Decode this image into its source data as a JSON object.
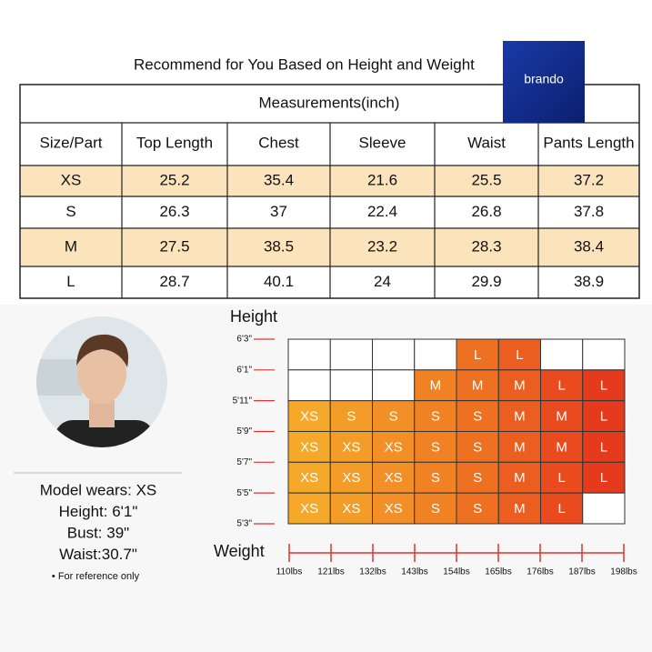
{
  "title": "Recommend for You Based on Height and Weight",
  "logo": "brando",
  "table": {
    "caption": "Measurements(inch)",
    "columns": [
      "Size/Part",
      "Top Length",
      "Chest",
      "Sleeve",
      "Waist",
      "Pants Length"
    ],
    "rows": [
      [
        "XS",
        25.2,
        35.4,
        21.6,
        25.5,
        37.2
      ],
      [
        "S",
        26.3,
        37,
        22.4,
        26.8,
        37.8
      ],
      [
        "M",
        27.5,
        38.5,
        23.2,
        28.3,
        38.4
      ],
      [
        "L",
        28.7,
        40.1,
        24,
        29.9,
        38.9
      ]
    ]
  },
  "height_chart": {
    "y_label": "Height",
    "x_label": "Weight",
    "heights": [
      "6'3\"",
      "6'1\"",
      "5'11\"",
      "5'9\"",
      "5'7\"",
      "5'5\"",
      "5'3\""
    ],
    "weights": [
      "110lbs",
      "121lbs",
      "132lbs",
      "143lbs",
      "154lbs",
      "165lbs",
      "176lbs",
      "187lbs",
      "198lbs"
    ],
    "cells": [
      [
        null,
        null,
        null,
        null,
        "L",
        "L",
        null,
        null
      ],
      [
        null,
        null,
        null,
        "M",
        "M",
        "M",
        "L",
        "L"
      ],
      [
        "XS",
        "S",
        "S",
        "S",
        "S",
        "M",
        "M",
        "L"
      ],
      [
        "XS",
        "XS",
        "XS",
        "S",
        "S",
        "M",
        "M",
        "L"
      ],
      [
        "XS",
        "XS",
        "XS",
        "S",
        "S",
        "M",
        "L",
        "L"
      ],
      [
        "XS",
        "XS",
        "XS",
        "S",
        "S",
        "M",
        "L",
        null
      ]
    ]
  },
  "model": {
    "lines": [
      "Model wears: XS",
      "Height: 6'1\"",
      "Bust: 39\"",
      "Waist:30.7\""
    ],
    "note": "• For reference only"
  }
}
